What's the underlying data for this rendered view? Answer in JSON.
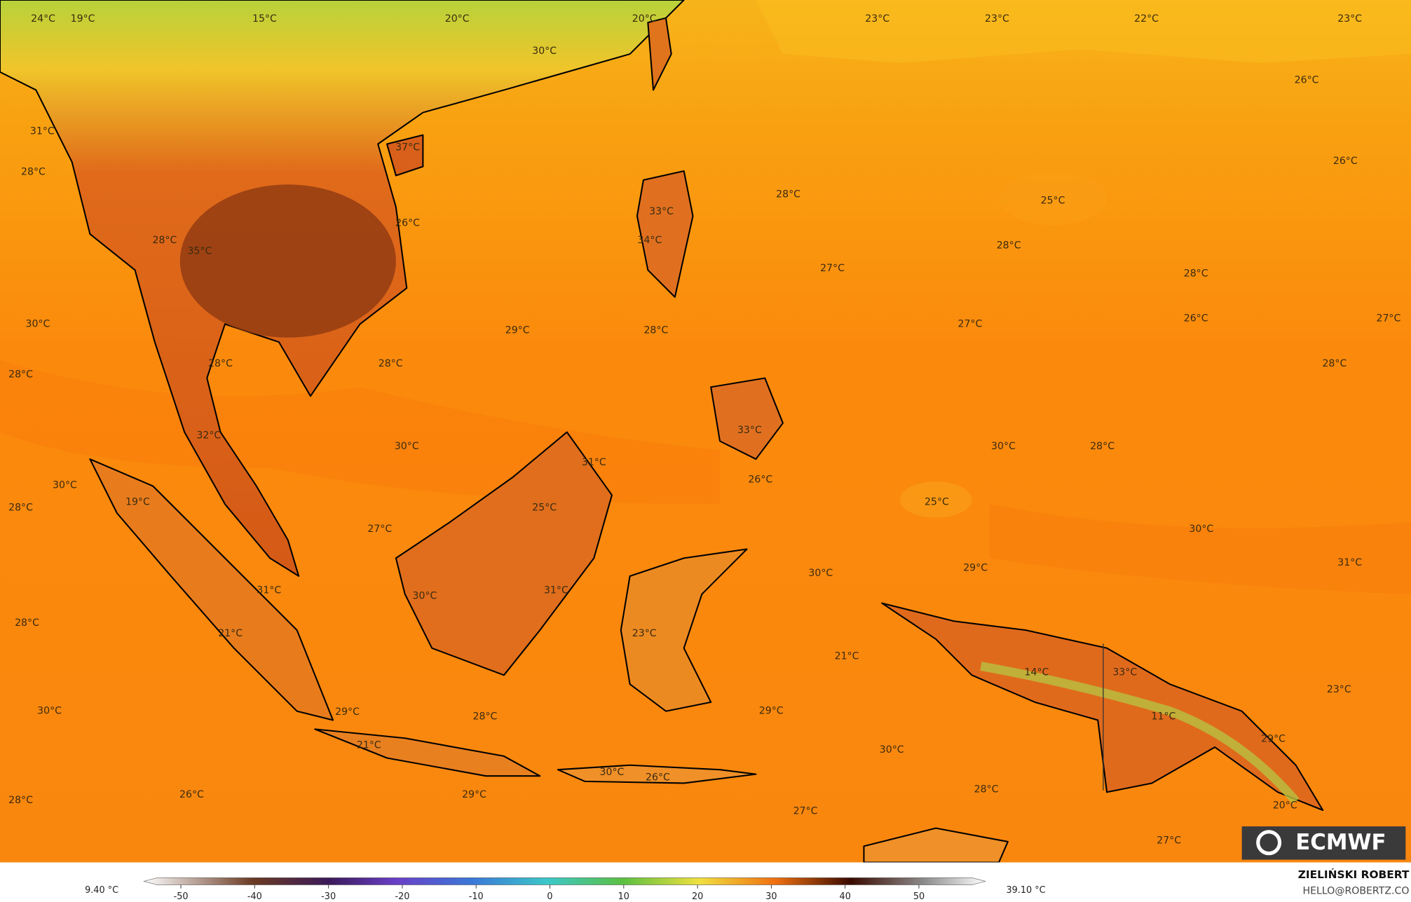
{
  "map": {
    "labels": [
      "24°C",
      "19°C",
      "15°C",
      "20°C",
      "20°C",
      "23°C",
      "23°C",
      "22°C",
      "23°C",
      "30°C",
      "26°C",
      "31°C",
      "37°C",
      "26°C",
      "28°C",
      "28°C",
      "25°C",
      "33°C",
      "26°C",
      "28°C",
      "34°C",
      "28°C",
      "35°C",
      "27°C",
      "28°C",
      "26°C",
      "27°C",
      "30°C",
      "27°C",
      "29°C",
      "28°C",
      "28°C",
      "28°C",
      "28°C",
      "28°C",
      "33°C",
      "30°C",
      "30°C",
      "28°C",
      "32°C",
      "31°C",
      "26°C",
      "30°C",
      "19°C",
      "25°C",
      "28°C",
      "25°C",
      "27°C",
      "30°C",
      "29°C",
      "31°C",
      "30°C",
      "31°C",
      "31°C",
      "30°C",
      "28°C",
      "21°C",
      "23°C",
      "21°C",
      "14°C",
      "33°C",
      "23°C",
      "30°C",
      "29°C",
      "28°C",
      "29°C",
      "11°C",
      "29°C",
      "21°C",
      "30°C",
      "30°C",
      "26°C",
      "28°C",
      "26°C",
      "29°C",
      "28°C",
      "20°C",
      "27°C",
      "27°C"
    ]
  },
  "colorbar": {
    "min_label": "9.40 °C",
    "max_label": "39.10 °C",
    "range": [
      -55,
      59
    ],
    "ticks": [
      -50,
      -40,
      -30,
      -20,
      -10,
      0,
      10,
      20,
      30,
      40,
      50
    ]
  },
  "credit": {
    "author": "ZIELIŃSKI ROBERT",
    "email": "HELLO@ROBERTZ.CO"
  },
  "logo": "ECMWF"
}
